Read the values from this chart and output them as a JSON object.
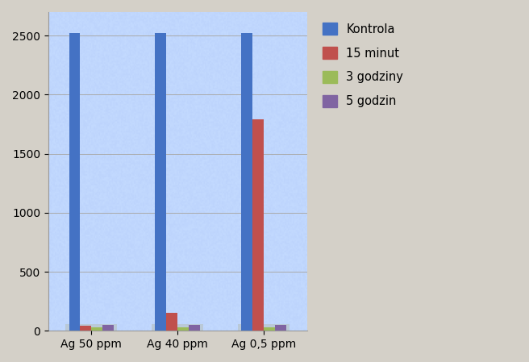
{
  "categories": [
    "Ag 50 ppm",
    "Ag 40 ppm",
    "Ag 0,5 ppm"
  ],
  "series": {
    "Kontrola": [
      2520,
      2520,
      2520
    ],
    "15 minut": [
      45,
      150,
      1790
    ],
    "3 godziny": [
      30,
      30,
      30
    ],
    "5 godzin": [
      50,
      50,
      50
    ]
  },
  "colors": {
    "Kontrola": "#4472C4",
    "15 minut": "#C0504D",
    "3 godziny": "#9BBB59",
    "5 godzin": "#8064A2"
  },
  "ylim": [
    0,
    2700
  ],
  "yticks": [
    0,
    500,
    1000,
    1500,
    2000,
    2500
  ],
  "bg_outer": "#D4D0C8",
  "bg_plot": "#CFDDF0",
  "grid_color": "#B0BEC5",
  "legend_labels": [
    "Kontrola",
    "15 minut",
    "3 godziny",
    "5 godzin"
  ]
}
